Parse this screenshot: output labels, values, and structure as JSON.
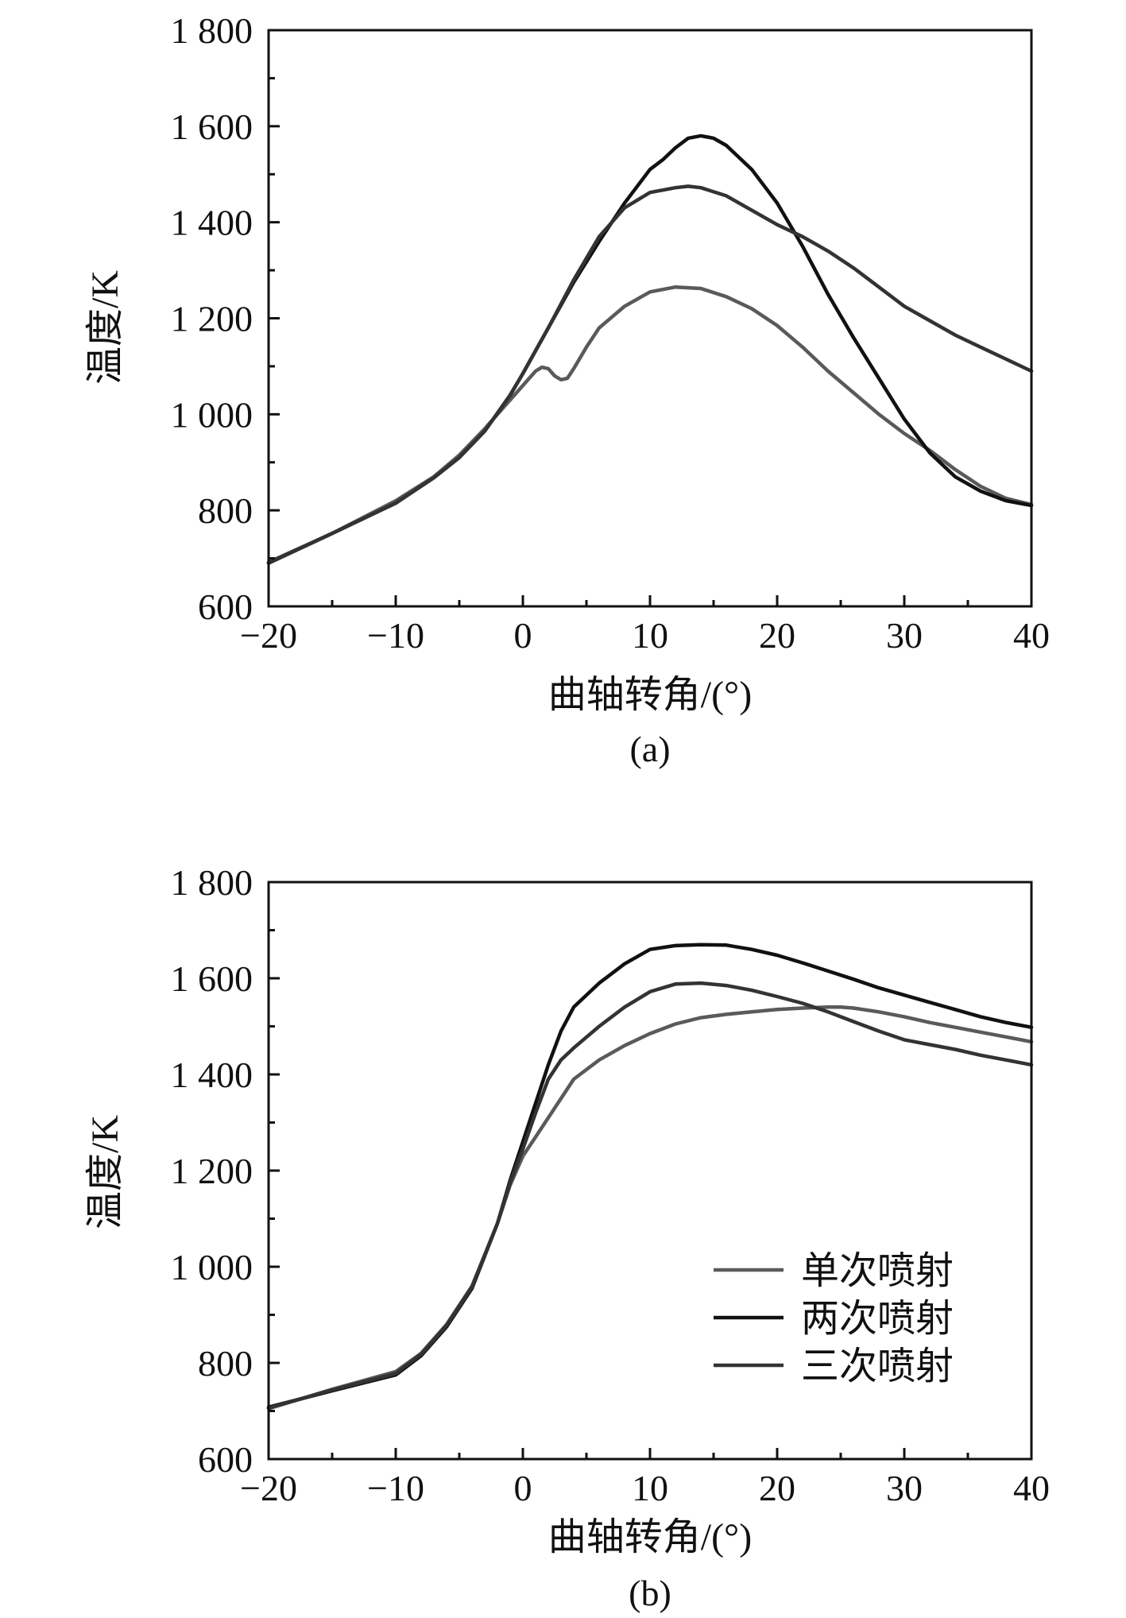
{
  "chart_data": [
    {
      "type": "line",
      "panel_label": "(a)",
      "xlabel": "曲轴转角/(°)",
      "ylabel": "温度/K",
      "xlim": [
        -20,
        40
      ],
      "ylim": [
        600,
        1800
      ],
      "xticks": [
        -20,
        -10,
        0,
        10,
        20,
        30,
        40
      ],
      "xtick_labels": [
        "−20",
        "−10",
        "0",
        "10",
        "20",
        "30",
        "40"
      ],
      "yticks": [
        600,
        800,
        1000,
        1200,
        1400,
        1600,
        1800
      ],
      "ytick_labels": [
        "600",
        "800",
        "1 000",
        "1 200",
        "1 400",
        "1 600",
        "1 800"
      ],
      "legend": null,
      "series": [
        {
          "color": "#5a5a5a",
          "x": [
            -20,
            -15,
            -10,
            -7,
            -5,
            -3,
            -1,
            0,
            1,
            1.5,
            2,
            2.5,
            3,
            3.5,
            4,
            5,
            6,
            8,
            10,
            12,
            14,
            16,
            18,
            20,
            22,
            24,
            26,
            28,
            30,
            32,
            34,
            36,
            38,
            40
          ],
          "y": [
            692,
            752,
            820,
            870,
            915,
            970,
            1030,
            1060,
            1090,
            1098,
            1095,
            1080,
            1072,
            1075,
            1095,
            1140,
            1180,
            1225,
            1255,
            1265,
            1262,
            1245,
            1220,
            1185,
            1140,
            1090,
            1045,
            1000,
            960,
            925,
            885,
            850,
            825,
            812
          ]
        },
        {
          "color": "#111111",
          "x": [
            -20,
            -15,
            -10,
            -7,
            -5,
            -3,
            -1,
            0,
            2,
            4,
            6,
            8,
            10,
            11,
            12,
            13,
            14,
            15,
            16,
            18,
            20,
            22,
            24,
            26,
            28,
            30,
            32,
            34,
            36,
            38,
            40
          ],
          "y": [
            690,
            752,
            815,
            868,
            910,
            965,
            1040,
            1085,
            1180,
            1275,
            1360,
            1440,
            1510,
            1530,
            1555,
            1575,
            1580,
            1575,
            1560,
            1510,
            1440,
            1350,
            1250,
            1160,
            1075,
            990,
            920,
            870,
            840,
            820,
            810
          ]
        },
        {
          "color": "#333333",
          "x": [
            -20,
            -15,
            -10,
            -7,
            -5,
            -3,
            -1,
            0,
            2,
            4,
            6,
            8,
            10,
            12,
            13,
            14,
            16,
            18,
            20,
            22,
            24,
            26,
            28,
            30,
            32,
            34,
            36,
            38,
            40
          ],
          "y": [
            690,
            752,
            815,
            868,
            910,
            965,
            1040,
            1085,
            1180,
            1280,
            1370,
            1430,
            1462,
            1472,
            1475,
            1472,
            1455,
            1425,
            1395,
            1370,
            1340,
            1305,
            1265,
            1225,
            1195,
            1165,
            1140,
            1115,
            1090
          ]
        }
      ]
    },
    {
      "type": "line",
      "panel_label": "(b)",
      "xlabel": "曲轴转角/(°)",
      "ylabel": "温度/K",
      "xlim": [
        -20,
        40
      ],
      "ylim": [
        600,
        1800
      ],
      "xticks": [
        -20,
        -10,
        0,
        10,
        20,
        30,
        40
      ],
      "xtick_labels": [
        "−20",
        "−10",
        "0",
        "10",
        "20",
        "30",
        "40"
      ],
      "yticks": [
        600,
        800,
        1000,
        1200,
        1400,
        1600,
        1800
      ],
      "ytick_labels": [
        "600",
        "800",
        "1 000",
        "1 200",
        "1 400",
        "1 600",
        "1 800"
      ],
      "legend": "bottom-right",
      "series": [
        {
          "name": "单次喷射",
          "color": "#5a5a5a",
          "x": [
            -20,
            -15,
            -10,
            -8,
            -6,
            -4,
            -2,
            -1,
            0,
            1,
            2,
            4,
            6,
            8,
            10,
            12,
            14,
            16,
            18,
            20,
            22,
            24,
            25,
            26,
            28,
            30,
            32,
            34,
            36,
            38,
            40
          ],
          "y": [
            705,
            745,
            782,
            820,
            880,
            960,
            1090,
            1170,
            1230,
            1270,
            1310,
            1390,
            1430,
            1460,
            1485,
            1505,
            1518,
            1525,
            1530,
            1535,
            1538,
            1540,
            1540,
            1538,
            1530,
            1520,
            1508,
            1498,
            1488,
            1478,
            1468
          ]
        },
        {
          "name": "两次喷射",
          "color": "#111111",
          "x": [
            -20,
            -15,
            -10,
            -8,
            -6,
            -4,
            -2,
            -1,
            0,
            1,
            2,
            3,
            4,
            6,
            8,
            10,
            12,
            14,
            16,
            18,
            20,
            22,
            24,
            26,
            28,
            30,
            32,
            34,
            36,
            38,
            40
          ],
          "y": [
            708,
            742,
            775,
            815,
            875,
            955,
            1090,
            1180,
            1260,
            1340,
            1420,
            1490,
            1540,
            1590,
            1630,
            1660,
            1668,
            1670,
            1669,
            1660,
            1648,
            1632,
            1615,
            1598,
            1580,
            1565,
            1550,
            1535,
            1520,
            1508,
            1498
          ]
        },
        {
          "name": "三次喷射",
          "color": "#333333",
          "x": [
            -20,
            -15,
            -10,
            -8,
            -6,
            -4,
            -2,
            -1,
            0,
            1,
            2,
            3,
            4,
            6,
            8,
            10,
            12,
            14,
            16,
            18,
            20,
            22,
            24,
            26,
            28,
            30,
            32,
            34,
            36,
            38,
            40
          ],
          "y": [
            706,
            744,
            778,
            818,
            878,
            958,
            1090,
            1175,
            1245,
            1320,
            1390,
            1430,
            1455,
            1500,
            1540,
            1572,
            1588,
            1590,
            1585,
            1575,
            1562,
            1548,
            1530,
            1510,
            1490,
            1472,
            1462,
            1452,
            1440,
            1430,
            1420
          ]
        }
      ]
    }
  ]
}
